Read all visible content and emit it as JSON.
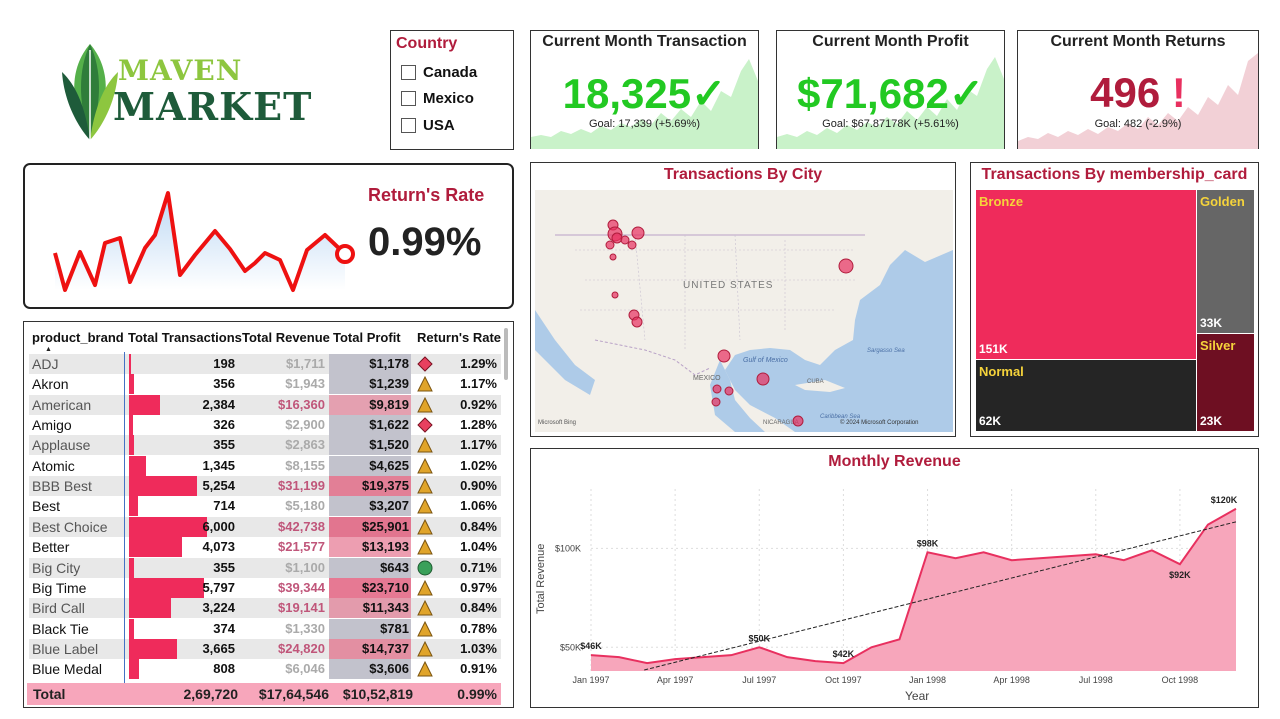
{
  "logo": {
    "word1": "MAVEN",
    "word2": "MARKET"
  },
  "country_slicer": {
    "title": "Country",
    "options": [
      "Canada",
      "Mexico",
      "USA"
    ]
  },
  "kpis": [
    {
      "title": "Current Month Transaction",
      "value": "18,325",
      "status": "✓",
      "goal": "Goal: 17,339 (+5.69%)",
      "color": "#22c922",
      "spark_color": "#c9f2c9"
    },
    {
      "title": "Current Month Profit",
      "value": "$71,682",
      "status": "✓",
      "goal": "Goal: $67.87178K (+5.61%)",
      "color": "#22c922",
      "spark_color": "#c9f2c9"
    },
    {
      "title": "Current Month Returns",
      "value": "496",
      "status": "!",
      "goal": "Goal: 482 (-2.9%)",
      "color": "#b01c3c",
      "spark_color": "#f2d0d6"
    }
  ],
  "return_rate": {
    "title": "Return's Rate",
    "value": "0.99%",
    "line_color": "#ee1111"
  },
  "table": {
    "headers": [
      "product_brand",
      "Total Transactions",
      "Total Revenue",
      "Total Profit",
      "Return's Rate"
    ],
    "rows": [
      {
        "brand": "ADJ",
        "transactions": "198",
        "revenue": "$1,711",
        "profit": "$1,178",
        "icon": "diamond-red",
        "rate": "1.29%",
        "t_frac": 0.03
      },
      {
        "brand": "Akron",
        "transactions": "356",
        "revenue": "$1,943",
        "profit": "$1,239",
        "icon": "triangle-amber",
        "rate": "1.17%",
        "t_frac": 0.06
      },
      {
        "brand": "American",
        "transactions": "2,384",
        "revenue": "$16,360",
        "profit": "$9,819",
        "icon": "triangle-amber",
        "rate": "0.92%",
        "t_frac": 0.4
      },
      {
        "brand": "Amigo",
        "transactions": "326",
        "revenue": "$2,900",
        "profit": "$1,622",
        "icon": "diamond-red",
        "rate": "1.28%",
        "t_frac": 0.05
      },
      {
        "brand": "Applause",
        "transactions": "355",
        "revenue": "$2,863",
        "profit": "$1,520",
        "icon": "triangle-amber",
        "rate": "1.17%",
        "t_frac": 0.06
      },
      {
        "brand": "Atomic",
        "transactions": "1,345",
        "revenue": "$8,155",
        "profit": "$4,625",
        "icon": "triangle-amber",
        "rate": "1.02%",
        "t_frac": 0.22
      },
      {
        "brand": "BBB Best",
        "transactions": "5,254",
        "revenue": "$31,199",
        "profit": "$19,375",
        "icon": "triangle-amber",
        "rate": "0.90%",
        "t_frac": 0.87
      },
      {
        "brand": "Best",
        "transactions": "714",
        "revenue": "$5,180",
        "profit": "$3,207",
        "icon": "triangle-amber",
        "rate": "1.06%",
        "t_frac": 0.12
      },
      {
        "brand": "Best Choice",
        "transactions": "6,000",
        "revenue": "$42,738",
        "profit": "$25,901",
        "icon": "triangle-amber",
        "rate": "0.84%",
        "t_frac": 1.0
      },
      {
        "brand": "Better",
        "transactions": "4,073",
        "revenue": "$21,577",
        "profit": "$13,193",
        "icon": "triangle-amber",
        "rate": "1.04%",
        "t_frac": 0.68
      },
      {
        "brand": "Big City",
        "transactions": "355",
        "revenue": "$1,100",
        "profit": "$643",
        "icon": "circle-green",
        "rate": "0.71%",
        "t_frac": 0.06
      },
      {
        "brand": "Big Time",
        "transactions": "5,797",
        "revenue": "$39,344",
        "profit": "$23,710",
        "icon": "triangle-amber",
        "rate": "0.97%",
        "t_frac": 0.96
      },
      {
        "brand": "Bird Call",
        "transactions": "3,224",
        "revenue": "$19,141",
        "profit": "$11,343",
        "icon": "triangle-amber",
        "rate": "0.84%",
        "t_frac": 0.54
      },
      {
        "brand": "Black Tie",
        "transactions": "374",
        "revenue": "$1,330",
        "profit": "$781",
        "icon": "triangle-amber",
        "rate": "0.78%",
        "t_frac": 0.06
      },
      {
        "brand": "Blue Label",
        "transactions": "3,665",
        "revenue": "$24,820",
        "profit": "$14,737",
        "icon": "triangle-amber",
        "rate": "1.03%",
        "t_frac": 0.61
      },
      {
        "brand": "Blue Medal",
        "transactions": "808",
        "revenue": "$6,046",
        "profit": "$3,606",
        "icon": "triangle-amber",
        "rate": "0.91%",
        "t_frac": 0.13
      }
    ],
    "total": {
      "label": "Total",
      "transactions": "2,69,720",
      "revenue": "$17,64,546",
      "profit": "$10,52,819",
      "rate": "0.99%"
    }
  },
  "map": {
    "title": "Transactions By City",
    "country_label": "UNITED STATES",
    "labels": [
      "Gulf of Mexico",
      "MEXICO",
      "CUBA",
      "Sargasso Sea",
      "Caribbean Sea",
      "NICARAGUA"
    ],
    "bing": "Microsoft Bing",
    "copyright": "© 2024 Microsoft Corporation"
  },
  "treemap": {
    "title": "Transactions By membership_card",
    "tiles": [
      {
        "name": "Bronze",
        "value": "151K",
        "color": "#ef2b5b"
      },
      {
        "name": "Golden",
        "value": "33K",
        "color": "#666666"
      },
      {
        "name": "Silver",
        "value": "23K",
        "color": "#6e0f22"
      },
      {
        "name": "Normal",
        "value": "62K",
        "color": "#252525"
      }
    ]
  },
  "chart_data": {
    "type": "area",
    "title": "Monthly Revenue",
    "xlabel": "Year",
    "ylabel": "Total Revenue",
    "x": [
      "Jan 1997",
      "Feb 1997",
      "Mar 1997",
      "Apr 1997",
      "May 1997",
      "Jun 1997",
      "Jul 1997",
      "Aug 1997",
      "Sep 1997",
      "Oct 1997",
      "Nov 1997",
      "Dec 1997",
      "Jan 1998",
      "Feb 1998",
      "Mar 1998",
      "Apr 1998",
      "May 1998",
      "Jun 1998",
      "Jul 1998",
      "Aug 1998",
      "Sep 1998",
      "Oct 1998",
      "Nov 1998",
      "Dec 1998"
    ],
    "x_ticks": [
      "Jan 1997",
      "Apr 1997",
      "Jul 1997",
      "Oct 1997",
      "Jan 1998",
      "Apr 1998",
      "Jul 1998",
      "Oct 1998"
    ],
    "y_ticks": [
      "$50K",
      "$100K"
    ],
    "values": [
      46,
      45,
      42,
      44,
      45,
      46,
      50,
      45,
      43,
      42,
      50,
      54,
      98,
      95,
      98,
      94,
      95,
      96,
      97,
      94,
      99,
      92,
      112,
      120
    ],
    "data_labels": [
      {
        "index": 0,
        "text": "$46K"
      },
      {
        "index": 6,
        "text": "$50K"
      },
      {
        "index": 9,
        "text": "$42K"
      },
      {
        "index": 12,
        "text": "$98K"
      },
      {
        "index": 21,
        "text": "$92K"
      },
      {
        "index": 23,
        "text": "$120K"
      }
    ],
    "trendline": true,
    "color": "#e8305f",
    "fill": "#f7a6bb"
  }
}
